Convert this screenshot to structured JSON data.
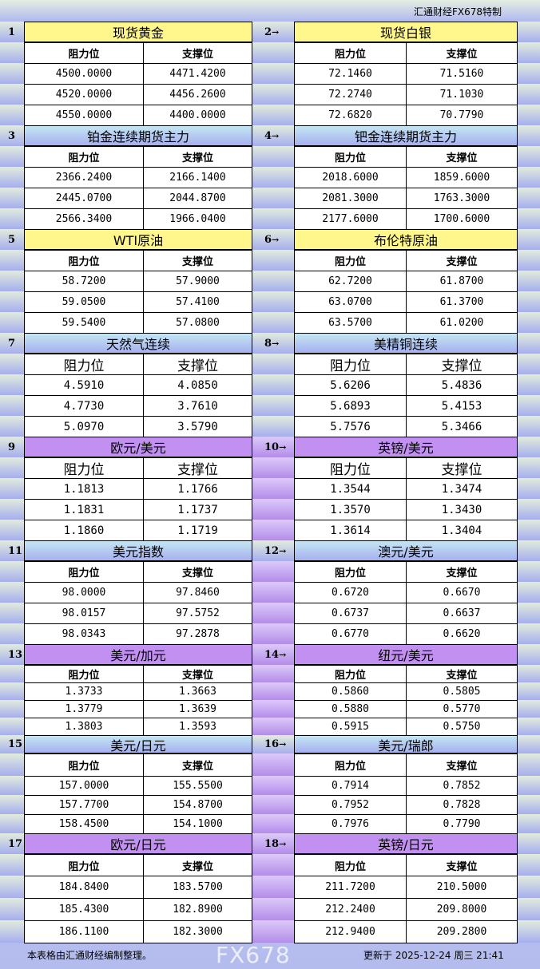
{
  "brand": "汇通财经FX678特制",
  "column_headers": {
    "resistance": "阻力位",
    "support": "支撑位"
  },
  "arrow_glyph": "→",
  "colors": {
    "yellow": "#fff68c",
    "blue": "#a6b0f0",
    "purple": "#c290f0"
  },
  "rows": [
    {
      "left": {
        "num": "1",
        "title": "现货黄金",
        "color": "yellow",
        "resistance": [
          "4500.0000",
          "4520.0000",
          "4550.0000"
        ],
        "support": [
          "4471.4200",
          "4456.2600",
          "4400.0000"
        ]
      },
      "right": {
        "num": "2",
        "title": "现货白银",
        "color": "yellow",
        "resistance": [
          "72.1460",
          "72.2740",
          "72.6820"
        ],
        "support": [
          "71.5160",
          "71.1030",
          "70.7790"
        ]
      }
    },
    {
      "left": {
        "num": "3",
        "title": "铂金连续期货主力",
        "color": "blue",
        "resistance": [
          "2366.2400",
          "2445.0700",
          "2566.3400"
        ],
        "support": [
          "2166.1400",
          "2044.8700",
          "1966.0400"
        ]
      },
      "right": {
        "num": "4",
        "title": "钯金连续期货主力",
        "color": "blue",
        "resistance": [
          "2018.6000",
          "2081.3000",
          "2177.6000"
        ],
        "support": [
          "1859.6000",
          "1763.3000",
          "1700.6000"
        ]
      }
    },
    {
      "left": {
        "num": "5",
        "title": "WTI原油",
        "color": "yellow",
        "resistance": [
          "58.7200",
          "59.0500",
          "59.5400"
        ],
        "support": [
          "57.9000",
          "57.4100",
          "57.0800"
        ]
      },
      "right": {
        "num": "6",
        "title": "布伦特原油",
        "color": "yellow",
        "resistance": [
          "62.7200",
          "63.0700",
          "63.5700"
        ],
        "support": [
          "61.8700",
          "61.3700",
          "61.0200"
        ]
      }
    },
    {
      "left": {
        "num": "7",
        "title": "天然气连续",
        "color": "blue",
        "resistance": [
          "4.5910",
          "4.7730",
          "5.0970"
        ],
        "support": [
          "4.0850",
          "3.7610",
          "3.5790"
        ]
      },
      "right": {
        "num": "8",
        "title": "美精铜连续",
        "color": "blue",
        "resistance": [
          "5.6206",
          "5.6893",
          "5.7576"
        ],
        "support": [
          "5.4836",
          "5.4153",
          "5.3466"
        ]
      }
    },
    {
      "left": {
        "num": "9",
        "title": "欧元/美元",
        "color": "purple",
        "resistance": [
          "1.1813",
          "1.1831",
          "1.1860"
        ],
        "support": [
          "1.1766",
          "1.1737",
          "1.1719"
        ]
      },
      "right": {
        "num": "10",
        "title": "英镑/美元",
        "color": "purple",
        "resistance": [
          "1.3544",
          "1.3570",
          "1.3614"
        ],
        "support": [
          "1.3474",
          "1.3430",
          "1.3404"
        ]
      }
    },
    {
      "left": {
        "num": "11",
        "title": "美元指数",
        "color": "blue",
        "resistance": [
          "98.0000",
          "98.0157",
          "98.0343"
        ],
        "support": [
          "97.8460",
          "97.5752",
          "97.2878"
        ]
      },
      "right": {
        "num": "12",
        "title": "澳元/美元",
        "color": "blue",
        "resistance": [
          "0.6720",
          "0.6737",
          "0.6770"
        ],
        "support": [
          "0.6670",
          "0.6637",
          "0.6620"
        ]
      }
    },
    {
      "left": {
        "num": "13",
        "title": "美元/加元",
        "color": "purple",
        "resistance": [
          "1.3733",
          "1.3779",
          "1.3803"
        ],
        "support": [
          "1.3663",
          "1.3639",
          "1.3593"
        ]
      },
      "right": {
        "num": "14",
        "title": "纽元/美元",
        "color": "purple",
        "resistance": [
          "0.5860",
          "0.5880",
          "0.5915"
        ],
        "support": [
          "0.5805",
          "0.5770",
          "0.5750"
        ]
      }
    },
    {
      "left": {
        "num": "15",
        "title": "美元/日元",
        "color": "blue",
        "resistance": [
          "157.0000",
          "157.7700",
          "158.4500"
        ],
        "support": [
          "155.5500",
          "154.8700",
          "154.1000"
        ]
      },
      "right": {
        "num": "16",
        "title": "美元/瑞郎",
        "color": "blue",
        "resistance": [
          "0.7914",
          "0.7952",
          "0.7976"
        ],
        "support": [
          "0.7852",
          "0.7828",
          "0.7790"
        ]
      }
    },
    {
      "left": {
        "num": "17",
        "title": "欧元/日元",
        "color": "purple",
        "resistance": [
          "184.8400",
          "185.4300",
          "186.1100"
        ],
        "support": [
          "183.5700",
          "182.8900",
          "182.3000"
        ]
      },
      "right": {
        "num": "18",
        "title": "英镑/日元",
        "color": "purple",
        "resistance": [
          "211.7200",
          "212.2400",
          "212.9400"
        ],
        "support": [
          "210.5000",
          "209.8000",
          "209.2800"
        ]
      }
    }
  ],
  "footer": {
    "note": "本表格由汇通财经编制整理。",
    "updated": "更新于 2025-12-24 周三 21:41"
  },
  "watermark": "FX678"
}
